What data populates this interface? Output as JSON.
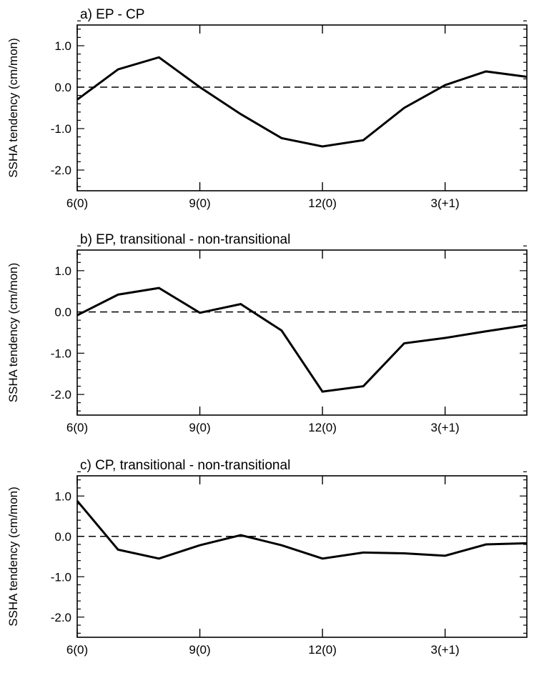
{
  "chart_data": [
    {
      "type": "line",
      "title": "a) EP - CP",
      "ylabel": "SSHA tendency (cm/mon)",
      "xlabel": "",
      "x": [
        6,
        7,
        8,
        9,
        10,
        11,
        12,
        13,
        14,
        15,
        16,
        17
      ],
      "x_tick_positions": [
        6,
        9,
        12,
        15
      ],
      "x_tick_labels": [
        "6(0)",
        "9(0)",
        "12(0)",
        "3(+1)"
      ],
      "xlim": [
        6,
        17
      ],
      "ylim": [
        -2.5,
        1.5
      ],
      "y_ticks": [
        1.0,
        0.0,
        -1.0,
        -2.0
      ],
      "y_tick_labels": [
        "1.0",
        "0.0",
        "-1.0",
        "-2.0"
      ],
      "zero_line": "dashed",
      "series": [
        {
          "values": [
            -0.3,
            0.43,
            0.72,
            0.0,
            -0.65,
            -1.23,
            -1.43,
            -1.28,
            -0.5,
            0.05,
            0.38,
            0.25
          ],
          "color": "#000000"
        }
      ]
    },
    {
      "type": "line",
      "title": "b) EP, transitional - non-transitional",
      "ylabel": "SSHA tendency (cm/mon)",
      "xlabel": "",
      "x": [
        6,
        7,
        8,
        9,
        10,
        11,
        12,
        13,
        14,
        15,
        16,
        17
      ],
      "x_tick_positions": [
        6,
        9,
        12,
        15
      ],
      "x_tick_labels": [
        "6(0)",
        "9(0)",
        "12(0)",
        "3(+1)"
      ],
      "xlim": [
        6,
        17
      ],
      "ylim": [
        -2.5,
        1.5
      ],
      "y_ticks": [
        1.0,
        0.0,
        -1.0,
        -2.0
      ],
      "y_tick_labels": [
        "1.0",
        "0.0",
        "-1.0",
        "-2.0"
      ],
      "zero_line": "dashed",
      "series": [
        {
          "values": [
            -0.08,
            0.42,
            0.58,
            -0.02,
            0.19,
            -0.45,
            -1.93,
            -1.8,
            -0.76,
            -0.63,
            -0.47,
            -0.32
          ],
          "color": "#000000"
        }
      ]
    },
    {
      "type": "line",
      "title": "c) CP, transitional - non-transitional",
      "ylabel": "SSHA tendency (cm/mon)",
      "xlabel": "",
      "x": [
        6,
        7,
        8,
        9,
        10,
        11,
        12,
        13,
        14,
        15,
        16,
        17
      ],
      "x_tick_positions": [
        6,
        9,
        12,
        15
      ],
      "x_tick_labels": [
        "6(0)",
        "9(0)",
        "12(0)",
        "3(+1)"
      ],
      "xlim": [
        6,
        17
      ],
      "ylim": [
        -2.5,
        1.5
      ],
      "y_ticks": [
        1.0,
        0.0,
        -1.0,
        -2.0
      ],
      "y_tick_labels": [
        "1.0",
        "0.0",
        "-1.0",
        "-2.0"
      ],
      "zero_line": "dashed",
      "series": [
        {
          "values": [
            0.88,
            -0.33,
            -0.55,
            -0.22,
            0.03,
            -0.22,
            -0.55,
            -0.4,
            -0.42,
            -0.48,
            -0.2,
            -0.17
          ],
          "color": "#000000"
        }
      ]
    }
  ]
}
